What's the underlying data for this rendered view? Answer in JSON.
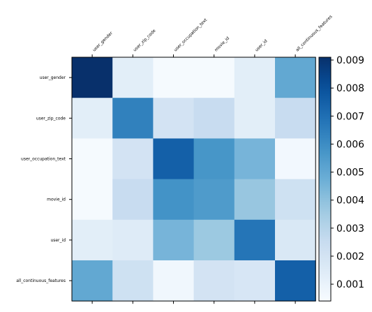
{
  "chart_data": {
    "type": "heatmap",
    "title": "",
    "xlabel": "",
    "ylabel": "",
    "x_labels": [
      "user_gender",
      "user_zip_code",
      "user_occupation_text",
      "movie_id",
      "user_id",
      "all_continuous_features"
    ],
    "y_labels": [
      "user_gender",
      "user_zip_code",
      "user_occupation_text",
      "movie_id",
      "user_id",
      "all_continuous_features"
    ],
    "values": [
      [
        0.0091,
        0.0013,
        0.0005,
        0.0005,
        0.0013,
        0.005
      ],
      [
        0.0013,
        0.0064,
        0.002,
        0.0025,
        0.0013,
        0.0025
      ],
      [
        0.0005,
        0.002,
        0.0075,
        0.0057,
        0.0045,
        0.0006
      ],
      [
        0.0005,
        0.0025,
        0.0058,
        0.0055,
        0.0038,
        0.0022
      ],
      [
        0.0013,
        0.0015,
        0.0045,
        0.0037,
        0.0068,
        0.0017
      ],
      [
        0.005,
        0.0022,
        0.0007,
        0.002,
        0.0018,
        0.0075
      ]
    ],
    "colorbar": {
      "vmin": 0.0004,
      "vmax": 0.0091,
      "ticks": [
        "0.001",
        "0.002",
        "0.003",
        "0.004",
        "0.005",
        "0.006",
        "0.007",
        "0.008",
        "0.009"
      ],
      "colormap": "Blues"
    },
    "grid": false,
    "legend": "none"
  }
}
